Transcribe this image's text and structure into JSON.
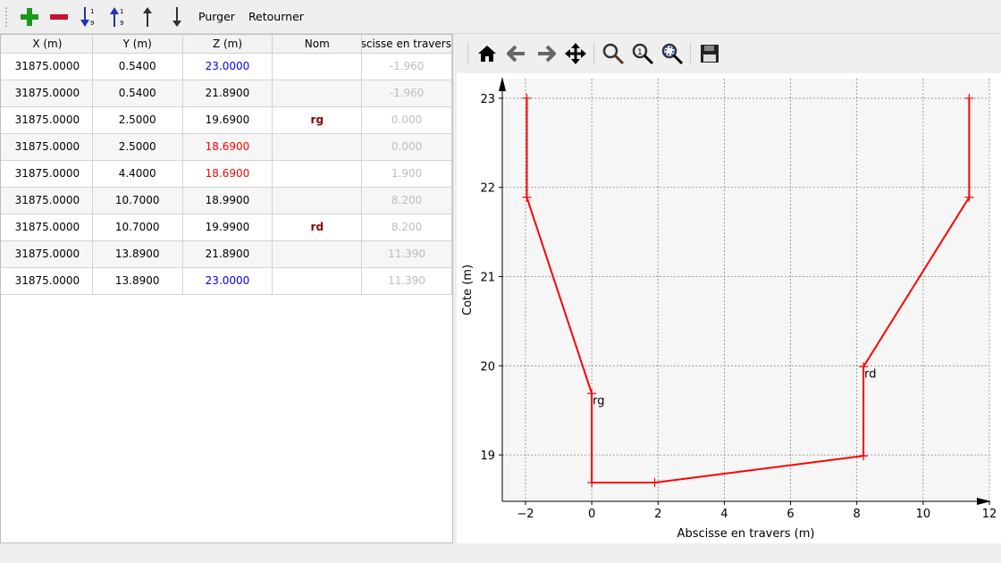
{
  "toolbar": {
    "add": "add-row",
    "remove": "remove-row",
    "sort_asc": "sort-ascending",
    "sort_desc": "sort-descending",
    "purger": "Purger",
    "retourner": "Retourner"
  },
  "table": {
    "headers": [
      "X (m)",
      "Y (m)",
      "Z (m)",
      "Nom",
      "Abscisse en travers"
    ],
    "rows": [
      {
        "x": "31875.0000",
        "y": "0.5400",
        "z": "23.0000",
        "z_color": "#0000ff",
        "nom": "",
        "a": "-1.960"
      },
      {
        "x": "31875.0000",
        "y": "0.5400",
        "z": "21.8900",
        "z_color": "#000000",
        "nom": "",
        "a": "-1.960"
      },
      {
        "x": "31875.0000",
        "y": "2.5000",
        "z": "19.6900",
        "z_color": "#000000",
        "nom": "rg",
        "a": "0.000"
      },
      {
        "x": "31875.0000",
        "y": "2.5000",
        "z": "18.6900",
        "z_color": "#ff0000",
        "nom": "",
        "a": "0.000"
      },
      {
        "x": "31875.0000",
        "y": "4.4000",
        "z": "18.6900",
        "z_color": "#ff0000",
        "nom": "",
        "a": "1.900"
      },
      {
        "x": "31875.0000",
        "y": "10.7000",
        "z": "18.9900",
        "z_color": "#000000",
        "nom": "",
        "a": "8.200"
      },
      {
        "x": "31875.0000",
        "y": "10.7000",
        "z": "19.9900",
        "z_color": "#000000",
        "nom": "rd",
        "a": "8.200"
      },
      {
        "x": "31875.0000",
        "y": "13.8900",
        "z": "21.8900",
        "z_color": "#000000",
        "nom": "",
        "a": "11.390"
      },
      {
        "x": "31875.0000",
        "y": "13.8900",
        "z": "23.0000",
        "z_color": "#0000ff",
        "nom": "",
        "a": "11.390"
      }
    ]
  },
  "chart_data": {
    "type": "line",
    "xlabel": "Abscisse en travers (m)",
    "ylabel": "Cote (m)",
    "xlim": [
      -2.7,
      12
    ],
    "ylim": [
      18.48,
      23.22
    ],
    "xticks": [
      -2,
      0,
      2,
      4,
      6,
      8,
      10,
      12
    ],
    "yticks": [
      19,
      20,
      21,
      22,
      23
    ],
    "grid": true,
    "color": "#ff0000",
    "x": [
      -1.96,
      -1.96,
      0,
      0,
      1.9,
      8.2,
      8.2,
      11.39,
      11.39
    ],
    "y": [
      23,
      21.89,
      19.69,
      18.69,
      18.69,
      18.99,
      19.99,
      21.89,
      23
    ],
    "annotations": [
      {
        "text": "rg",
        "x": 0,
        "y": 19.69
      },
      {
        "text": "rd",
        "x": 8.2,
        "y": 19.99
      }
    ]
  }
}
